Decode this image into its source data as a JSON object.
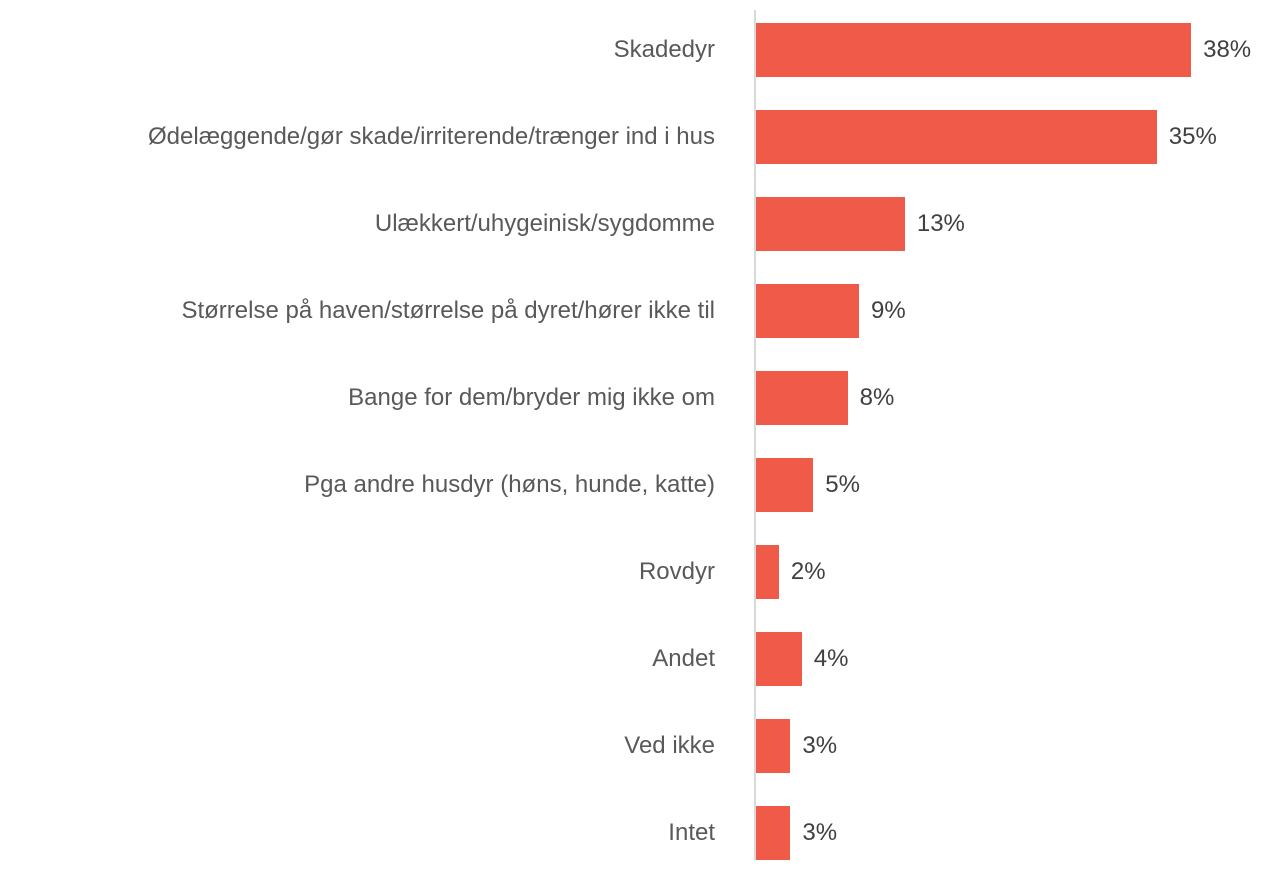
{
  "chart_data": {
    "type": "bar",
    "orientation": "horizontal",
    "categories": [
      "Skadedyr",
      "Ødelæggende/gør skade/irriterende/trænger ind i hus",
      "Ulækkert/uhygeinisk/sygdomme",
      "Størrelse på haven/størrelse på dyret/hører ikke til",
      "Bange for dem/bryder mig ikke om",
      "Pga andre husdyr (høns, hunde, katte)",
      "Rovdyr",
      "Andet",
      "Ved ikke",
      "Intet"
    ],
    "values": [
      38,
      35,
      13,
      9,
      8,
      5,
      2,
      4,
      3,
      3
    ],
    "value_labels": [
      "38%",
      "35%",
      "13%",
      "9%",
      "8%",
      "5%",
      "2%",
      "4%",
      "3%",
      "3%"
    ],
    "color": "#ef5b48"
  }
}
